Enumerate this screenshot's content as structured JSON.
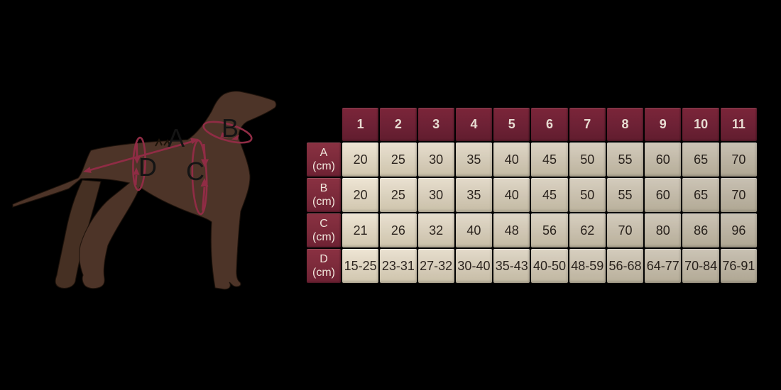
{
  "canvas": {
    "background": "#000000"
  },
  "measurement_diagram": {
    "description": "dog measurement silhouette",
    "dog_color": "#4d3428",
    "annotation_color": "#902c45",
    "label_color": "#141414",
    "labels": {
      "a": "A",
      "b": "B",
      "c": "C",
      "d": "D"
    }
  },
  "size_chart": {
    "columns": [
      "1",
      "2",
      "3",
      "4",
      "5",
      "6",
      "7",
      "8",
      "9",
      "10",
      "11"
    ],
    "rows": [
      {
        "label": "A",
        "unit": "(cm)",
        "values": [
          "20",
          "25",
          "30",
          "35",
          "40",
          "45",
          "50",
          "55",
          "60",
          "65",
          "70"
        ]
      },
      {
        "label": "B",
        "unit": "(cm)",
        "values": [
          "20",
          "25",
          "30",
          "35",
          "40",
          "45",
          "50",
          "55",
          "60",
          "65",
          "70"
        ]
      },
      {
        "label": "C",
        "unit": "(cm)",
        "values": [
          "21",
          "26",
          "32",
          "40",
          "48",
          "56",
          "62",
          "70",
          "80",
          "86",
          "96"
        ]
      },
      {
        "label": "D",
        "unit": "(cm)",
        "values": [
          "15-25",
          "23-31",
          "27-32",
          "30-40",
          "35-43",
          "40-50",
          "48-59",
          "56-68",
          "64-77",
          "70-84",
          "76-91"
        ]
      }
    ],
    "colors": {
      "header_bg": "#6d2135",
      "row_header_bg": "#7b2a3a",
      "cell_bg": "#ddd3bf",
      "header_text": "#e8dcd2",
      "cell_text": "#2e2620"
    }
  },
  "chart_data": {
    "type": "table",
    "columns": [
      "1",
      "2",
      "3",
      "4",
      "5",
      "6",
      "7",
      "8",
      "9",
      "10",
      "11"
    ],
    "rows": [
      {
        "label": "A (cm)",
        "values": [
          "20",
          "25",
          "30",
          "35",
          "40",
          "45",
          "50",
          "55",
          "60",
          "65",
          "70"
        ]
      },
      {
        "label": "B (cm)",
        "values": [
          "20",
          "25",
          "30",
          "35",
          "40",
          "45",
          "50",
          "55",
          "60",
          "65",
          "70"
        ]
      },
      {
        "label": "C (cm)",
        "values": [
          "21",
          "26",
          "32",
          "40",
          "48",
          "56",
          "62",
          "70",
          "80",
          "86",
          "96"
        ]
      },
      {
        "label": "D (cm)",
        "values": [
          "15-25",
          "23-31",
          "27-32",
          "30-40",
          "35-43",
          "40-50",
          "48-59",
          "56-68",
          "64-77",
          "70-84",
          "76-91"
        ]
      }
    ]
  }
}
